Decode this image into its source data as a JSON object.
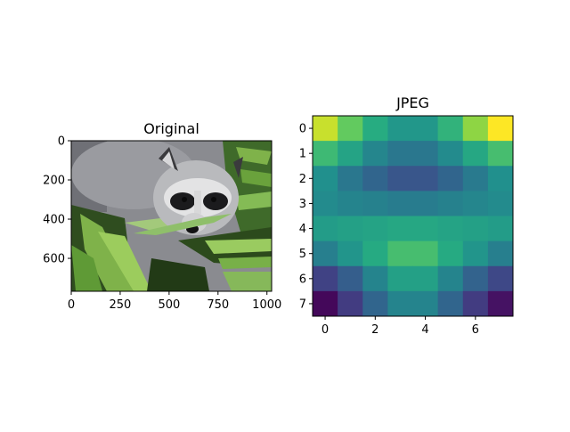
{
  "figure": {
    "background": "#ffffff"
  },
  "chart_data": [
    {
      "type": "image",
      "title": "Original",
      "image_subject": "raccoon-face",
      "image_shape": [
        768,
        1024
      ],
      "xlim": [
        0,
        1024
      ],
      "ylim": [
        768,
        0
      ],
      "xticks": [
        0,
        250,
        500,
        750,
        1000
      ],
      "xtick_labels": [
        "0",
        "250",
        "500",
        "750",
        "1000"
      ],
      "yticks": [
        0,
        200,
        400,
        600
      ],
      "ytick_labels": [
        "0",
        "200",
        "400",
        "600"
      ],
      "grid": false
    },
    {
      "type": "heatmap",
      "title": "JPEG",
      "colormap": "viridis",
      "value_range": [
        0,
        1
      ],
      "xlim": [
        -0.5,
        7.5
      ],
      "ylim": [
        7.5,
        -0.5
      ],
      "xticks": [
        0,
        2,
        4,
        6
      ],
      "xtick_labels": [
        "0",
        "2",
        "4",
        "6"
      ],
      "yticks": [
        0,
        1,
        2,
        3,
        4,
        5,
        6,
        7
      ],
      "ytick_labels": [
        "0",
        "1",
        "2",
        "3",
        "4",
        "5",
        "6",
        "7"
      ],
      "grid": false,
      "values": [
        [
          0.92,
          0.76,
          0.62,
          0.53,
          0.53,
          0.65,
          0.83,
          1.0
        ],
        [
          0.68,
          0.58,
          0.46,
          0.4,
          0.4,
          0.48,
          0.6,
          0.7
        ],
        [
          0.5,
          0.4,
          0.33,
          0.27,
          0.27,
          0.33,
          0.41,
          0.5
        ],
        [
          0.48,
          0.45,
          0.44,
          0.42,
          0.42,
          0.44,
          0.46,
          0.48
        ],
        [
          0.55,
          0.57,
          0.58,
          0.6,
          0.6,
          0.58,
          0.57,
          0.55
        ],
        [
          0.43,
          0.52,
          0.61,
          0.7,
          0.7,
          0.61,
          0.52,
          0.43
        ],
        [
          0.2,
          0.3,
          0.45,
          0.57,
          0.57,
          0.45,
          0.32,
          0.22
        ],
        [
          0.02,
          0.18,
          0.33,
          0.45,
          0.45,
          0.33,
          0.18,
          0.05
        ]
      ]
    }
  ]
}
